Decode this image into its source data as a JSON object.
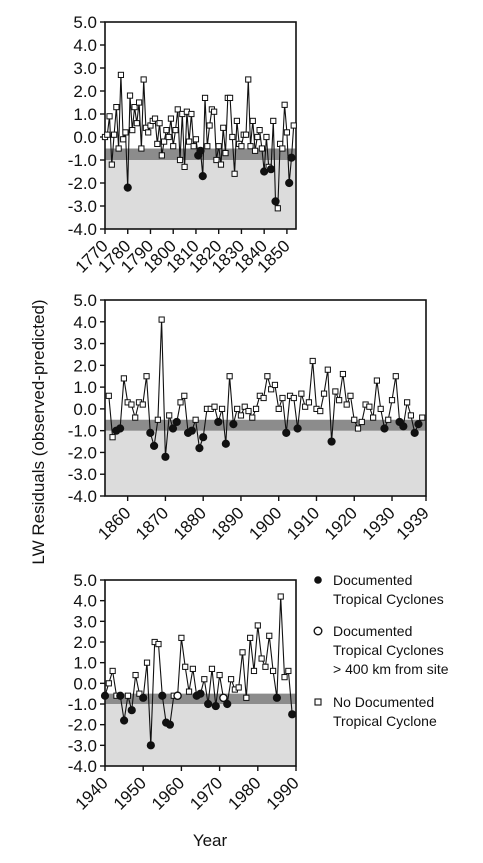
{
  "figure": {
    "ylabel": "LW Residuals (observed-predicted)",
    "xlabel": "Year",
    "colors": {
      "point_line": "#111111",
      "band_dark": "#8c8c8c",
      "region_light": "#dcdcdc"
    }
  },
  "legend": {
    "items": [
      {
        "marker": "filled-circle",
        "lines": [
          "Documented",
          "Tropical Cyclones"
        ]
      },
      {
        "marker": "open-circle",
        "lines": [
          "Documented",
          "Tropical Cyclones",
          "> 400 km from site"
        ]
      },
      {
        "marker": "open-square",
        "lines": [
          "No Documented",
          "Tropical Cyclone"
        ]
      }
    ]
  },
  "chart_data": [
    {
      "type": "line",
      "panel": 1,
      "xlim": [
        1770,
        1854
      ],
      "ylim": [
        -4.0,
        5.0
      ],
      "yticks": [
        "5.0",
        "4.0",
        "3.0",
        "2.0",
        "1.0",
        "0.0",
        "-1.0",
        "-2.0",
        "-3.0",
        "-4.0"
      ],
      "xticks": [
        "1770",
        "1780",
        "1790",
        "1800",
        "1810",
        "1820",
        "1830",
        "1840",
        "1850"
      ],
      "dark_band": [
        -1.0,
        -0.5
      ],
      "shaded_below": -0.5,
      "series": [
        {
          "x": [
            1770,
            1771,
            1772,
            1773,
            1774,
            1775,
            1776,
            1777,
            1778,
            1779,
            1780,
            1781,
            1782,
            1783,
            1784,
            1785,
            1786,
            1787,
            1788,
            1789,
            1790,
            1791,
            1792,
            1793,
            1794,
            1795,
            1796,
            1797,
            1798,
            1799,
            1800,
            1801,
            1802,
            1803,
            1804,
            1805,
            1806,
            1807,
            1808,
            1809,
            1810,
            1811,
            1812,
            1813,
            1814,
            1815,
            1816,
            1817,
            1818,
            1819,
            1820,
            1821,
            1822,
            1823,
            1824,
            1825,
            1826,
            1827,
            1828,
            1829,
            1830,
            1831,
            1832,
            1833,
            1834,
            1835,
            1836,
            1837,
            1838,
            1839,
            1840,
            1841,
            1842,
            1843,
            1844,
            1845,
            1846,
            1847,
            1848,
            1849,
            1850,
            1851,
            1852,
            1853
          ],
          "y": [
            0.0,
            0.1,
            0.9,
            -1.2,
            0.1,
            1.3,
            -0.5,
            2.7,
            -0.1,
            0.2,
            -2.2,
            1.8,
            0.3,
            1.3,
            0.6,
            1.5,
            -0.5,
            2.5,
            0.4,
            0.2,
            0.5,
            0.7,
            0.8,
            -0.3,
            0.6,
            -0.8,
            -0.2,
            0.3,
            0.0,
            0.8,
            -0.4,
            0.3,
            1.2,
            -1.0,
            1.0,
            -1.3,
            1.1,
            -0.2,
            1.0,
            -0.4,
            -0.1,
            -0.8,
            -0.6,
            -1.7,
            1.7,
            -0.4,
            0.5,
            1.2,
            1.1,
            -1.0,
            -0.4,
            -1.2,
            0.4,
            -0.7,
            1.7,
            1.7,
            0.0,
            -1.6,
            0.7,
            -0.3,
            -0.4,
            0.1,
            0.1,
            2.5,
            -0.4,
            0.7,
            -0.6,
            0.0,
            0.3,
            -0.5,
            -1.5,
            0.0,
            -1.3,
            -1.4,
            0.7,
            -2.8,
            -3.1,
            -0.3,
            -0.5,
            1.4,
            0.2,
            -2.0,
            -0.9,
            0.5
          ],
          "markers": [
            "s",
            "s",
            "s",
            "s",
            "s",
            "s",
            "s",
            "s",
            "s",
            "s",
            "f",
            "s",
            "s",
            "s",
            "s",
            "s",
            "s",
            "s",
            "s",
            "s",
            "s",
            "s",
            "s",
            "s",
            "s",
            "s",
            "s",
            "s",
            "s",
            "s",
            "s",
            "s",
            "s",
            "s",
            "s",
            "s",
            "s",
            "s",
            "s",
            "s",
            "s",
            "f",
            "f",
            "f",
            "s",
            "s",
            "s",
            "s",
            "s",
            "s",
            "s",
            "s",
            "s",
            "s",
            "s",
            "s",
            "s",
            "s",
            "s",
            "s",
            "s",
            "s",
            "s",
            "s",
            "s",
            "s",
            "s",
            "s",
            "s",
            "s",
            "f",
            "s",
            "s",
            "f",
            "s",
            "f",
            "s",
            "s",
            "s",
            "s",
            "s",
            "f",
            "f",
            "s"
          ]
        }
      ]
    },
    {
      "type": "line",
      "panel": 2,
      "xlim": [
        1854,
        1939
      ],
      "ylim": [
        -4.0,
        5.0
      ],
      "yticks": [
        "5.0",
        "4.0",
        "3.0",
        "2.0",
        "1.0",
        "0.0",
        "-1.0",
        "-2.0",
        "-3.0",
        "-4.0"
      ],
      "xticks": [
        "1860",
        "1870",
        "1880",
        "1890",
        "1900",
        "1910",
        "1920",
        "1930",
        "1939"
      ],
      "xtick_values": [
        1860,
        1870,
        1880,
        1890,
        1900,
        1910,
        1920,
        1930,
        1939
      ],
      "dark_band": [
        -1.0,
        -0.5
      ],
      "shaded_below": -0.5,
      "series": [
        {
          "x": [
            1855,
            1856,
            1857,
            1858,
            1859,
            1860,
            1861,
            1862,
            1863,
            1864,
            1865,
            1866,
            1867,
            1868,
            1869,
            1870,
            1871,
            1872,
            1873,
            1874,
            1875,
            1876,
            1877,
            1878,
            1879,
            1880,
            1881,
            1882,
            1883,
            1884,
            1885,
            1886,
            1887,
            1888,
            1889,
            1890,
            1891,
            1892,
            1893,
            1894,
            1895,
            1896,
            1897,
            1898,
            1899,
            1900,
            1901,
            1902,
            1903,
            1904,
            1905,
            1906,
            1907,
            1908,
            1909,
            1910,
            1911,
            1912,
            1913,
            1914,
            1915,
            1916,
            1917,
            1918,
            1919,
            1920,
            1921,
            1922,
            1923,
            1924,
            1925,
            1926,
            1927,
            1928,
            1929,
            1930,
            1931,
            1932,
            1933,
            1934,
            1935,
            1936,
            1937,
            1938
          ],
          "y": [
            0.6,
            -1.3,
            -1.0,
            -0.9,
            1.4,
            0.3,
            0.2,
            -0.4,
            0.3,
            0.2,
            1.5,
            -1.1,
            -1.7,
            -0.5,
            4.1,
            -2.2,
            -0.3,
            -0.9,
            -0.6,
            0.3,
            0.6,
            -1.1,
            -1.0,
            -0.5,
            -1.8,
            -1.3,
            0.0,
            0.0,
            0.1,
            -0.6,
            0.0,
            -1.6,
            1.5,
            -0.7,
            0.0,
            -0.3,
            0.1,
            -0.1,
            -0.4,
            0.0,
            0.6,
            0.5,
            1.5,
            0.9,
            1.1,
            0.0,
            0.5,
            -1.1,
            0.6,
            0.5,
            -0.9,
            0.7,
            0.1,
            0.3,
            2.2,
            0.0,
            -0.1,
            0.7,
            1.8,
            -1.5,
            0.8,
            0.4,
            1.6,
            0.2,
            0.6,
            -0.5,
            -0.9,
            -0.6,
            0.2,
            0.1,
            -0.4,
            1.3,
            0.0,
            -0.9,
            -0.5,
            0.4,
            1.5,
            -0.6,
            -0.8,
            0.3,
            -0.3,
            -1.1,
            -0.7,
            -0.4
          ],
          "markers": [
            "s",
            "s",
            "f",
            "f",
            "s",
            "s",
            "s",
            "s",
            "s",
            "s",
            "s",
            "f",
            "f",
            "s",
            "s",
            "f",
            "s",
            "f",
            "f",
            "s",
            "s",
            "f",
            "f",
            "s",
            "f",
            "f",
            "s",
            "s",
            "s",
            "f",
            "s",
            "f",
            "s",
            "f",
            "s",
            "s",
            "s",
            "s",
            "s",
            "s",
            "s",
            "s",
            "s",
            "s",
            "s",
            "s",
            "s",
            "f",
            "s",
            "s",
            "f",
            "s",
            "s",
            "s",
            "s",
            "s",
            "s",
            "s",
            "s",
            "f",
            "s",
            "s",
            "s",
            "s",
            "s",
            "s",
            "s",
            "s",
            "s",
            "s",
            "s",
            "s",
            "s",
            "f",
            "s",
            "s",
            "s",
            "f",
            "f",
            "s",
            "s",
            "f",
            "f",
            "s"
          ]
        }
      ]
    },
    {
      "type": "line",
      "panel": 3,
      "xlim": [
        1940,
        1990
      ],
      "ylim": [
        -4.0,
        5.0
      ],
      "yticks": [
        "5.0",
        "4.0",
        "3.0",
        "2.0",
        "1.0",
        "0.0",
        "-1.0",
        "-2.0",
        "-3.0",
        "-4.0"
      ],
      "xticks": [
        "1940",
        "1950",
        "1960",
        "1970",
        "1980",
        "1990"
      ],
      "dark_band": [
        -1.0,
        -0.5
      ],
      "shaded_below": -0.5,
      "series": [
        {
          "x": [
            1940,
            1941,
            1942,
            1943,
            1944,
            1945,
            1946,
            1947,
            1948,
            1949,
            1950,
            1951,
            1952,
            1953,
            1954,
            1955,
            1956,
            1957,
            1958,
            1959,
            1960,
            1961,
            1962,
            1963,
            1964,
            1965,
            1966,
            1967,
            1968,
            1969,
            1970,
            1971,
            1972,
            1973,
            1974,
            1975,
            1976,
            1977,
            1978,
            1979,
            1980,
            1981,
            1982,
            1983,
            1984,
            1985,
            1986,
            1987,
            1988,
            1989
          ],
          "y": [
            -0.6,
            0.0,
            0.6,
            -0.6,
            -0.6,
            -1.8,
            -0.6,
            -1.3,
            0.4,
            -0.5,
            -0.7,
            1.0,
            -3.0,
            2.0,
            1.9,
            -0.6,
            -1.9,
            -2.0,
            -0.6,
            -0.6,
            2.2,
            0.8,
            -0.4,
            0.7,
            -0.6,
            -0.5,
            0.2,
            -1.0,
            0.7,
            -1.1,
            0.4,
            -0.7,
            -1.0,
            0.2,
            -0.3,
            -0.2,
            1.5,
            -0.7,
            2.2,
            0.6,
            2.8,
            1.2,
            0.8,
            2.3,
            0.6,
            -0.7,
            4.2,
            0.3,
            0.6,
            -1.5
          ],
          "markers": [
            "f",
            "s",
            "s",
            "s",
            "f",
            "f",
            "s",
            "f",
            "s",
            "s",
            "f",
            "s",
            "f",
            "s",
            "s",
            "f",
            "f",
            "f",
            "s",
            "o",
            "s",
            "s",
            "s",
            "s",
            "f",
            "f",
            "s",
            "f",
            "s",
            "f",
            "s",
            "o",
            "f",
            "s",
            "s",
            "s",
            "s",
            "s",
            "s",
            "s",
            "s",
            "s",
            "s",
            "s",
            "s",
            "f",
            "s",
            "s",
            "s",
            "f"
          ]
        }
      ]
    }
  ]
}
